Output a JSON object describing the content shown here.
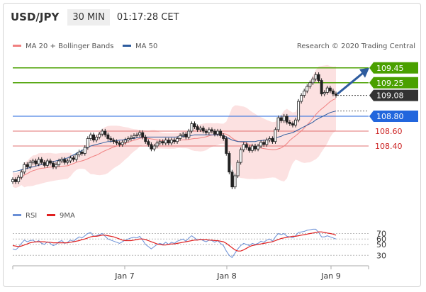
{
  "header": {
    "pair": "USD/JPY",
    "timeframe": "30 MIN",
    "time": "01:17:28 CET"
  },
  "legend": {
    "main": [
      {
        "label": "MA 20 + Bollinger Bands",
        "color": "#f08080"
      },
      {
        "label": "MA 50",
        "color": "#2e5c9e"
      }
    ],
    "rsi": [
      {
        "label": "RSI",
        "color": "#6a8fd6"
      },
      {
        "label": "9MA",
        "color": "#e02020"
      }
    ]
  },
  "credit": "Research © 2020 Trading Central",
  "colors": {
    "bullish": "#ffffff",
    "bearish": "#222222",
    "band_fill": "#fcdcdc",
    "green": "#4aa000",
    "blue": "#2266dd",
    "red": "#e07070"
  },
  "chart_data": [
    {
      "type": "candlestick",
      "x_labels": [
        "Jan 7",
        "Jan 8",
        "Jan 9"
      ],
      "ylim": [
        107.6,
        109.6
      ],
      "levels": [
        {
          "value": "109.45",
          "color": "#4aa000",
          "style": "line",
          "tag": "green"
        },
        {
          "value": "109.25",
          "color": "#4aa000",
          "style": "line",
          "tag": "green"
        },
        {
          "value": "109.08",
          "color": "#444444",
          "style": "dotted",
          "tag": "dark"
        },
        {
          "value": "108.80",
          "color": "#2266dd",
          "style": "line",
          "tag": "blue"
        },
        {
          "value": "108.60",
          "color": "#e07070",
          "style": "line",
          "tag": "text"
        },
        {
          "value": "108.40",
          "color": "#e07070",
          "style": "line",
          "tag": "text"
        }
      ],
      "close": [
        107.95,
        107.92,
        107.98,
        108.05,
        108.15,
        108.12,
        108.18,
        108.2,
        108.16,
        108.22,
        108.18,
        108.14,
        108.2,
        108.17,
        108.12,
        108.15,
        108.2,
        108.22,
        108.18,
        108.2,
        108.24,
        108.22,
        108.28,
        108.32,
        108.3,
        108.38,
        108.5,
        108.55,
        108.48,
        108.52,
        108.56,
        108.6,
        108.55,
        108.5,
        108.48,
        108.46,
        108.44,
        108.42,
        108.45,
        108.48,
        108.5,
        108.52,
        108.54,
        108.55,
        108.58,
        108.52,
        108.46,
        108.42,
        108.36,
        108.4,
        108.44,
        108.46,
        108.44,
        108.48,
        108.44,
        108.48,
        108.46,
        108.5,
        108.54,
        108.56,
        108.52,
        108.6,
        108.7,
        108.66,
        108.62,
        108.64,
        108.6,
        108.58,
        108.62,
        108.6,
        108.56,
        108.6,
        108.54,
        108.5,
        108.3,
        108.05,
        107.85,
        108.0,
        108.18,
        108.35,
        108.42,
        108.38,
        108.34,
        108.4,
        108.36,
        108.4,
        108.45,
        108.42,
        108.48,
        108.5,
        108.46,
        108.62,
        108.78,
        108.74,
        108.8,
        108.72,
        108.7,
        108.68,
        108.75,
        109.0,
        109.08,
        109.14,
        109.2,
        109.25,
        109.3,
        109.36,
        109.28,
        109.1,
        109.12,
        109.18,
        109.14,
        109.1,
        109.08
      ],
      "ma50": [
        108.05,
        108.06,
        108.07,
        108.08,
        108.09,
        108.1,
        108.11,
        108.12,
        108.13,
        108.14,
        108.15,
        108.16,
        108.17,
        108.18,
        108.19,
        108.2,
        108.21,
        108.22,
        108.23,
        108.24,
        108.26,
        108.28,
        108.3,
        108.32,
        108.34,
        108.36,
        108.38,
        108.4,
        108.41,
        108.42,
        108.43,
        108.44,
        108.45,
        108.46,
        108.46,
        108.47,
        108.47,
        108.48,
        108.48,
        108.49,
        108.49,
        108.5,
        108.5,
        108.51,
        108.51,
        108.52,
        108.52,
        108.52,
        108.52,
        108.52,
        108.52,
        108.52,
        108.52,
        108.52,
        108.52,
        108.52,
        108.52,
        108.52,
        108.53,
        108.53,
        108.53,
        108.54,
        108.54,
        108.55,
        108.55,
        108.55,
        108.55,
        108.55,
        108.55,
        108.55,
        108.55,
        108.55,
        108.55,
        108.54,
        108.52,
        108.5,
        108.48,
        108.47,
        108.46,
        108.46,
        108.46,
        108.46,
        108.46,
        108.46,
        108.46,
        108.47,
        108.47,
        108.48,
        108.48,
        108.49,
        108.5,
        108.51,
        108.52,
        108.53,
        108.55,
        108.56,
        108.57,
        108.58,
        108.6,
        108.62,
        108.64,
        108.66,
        108.68,
        108.7,
        108.72,
        108.75,
        108.77,
        108.79,
        108.81,
        108.83,
        108.85,
        108.86,
        108.87
      ],
      "rsi": [
        42,
        40,
        45,
        52,
        58,
        55,
        57,
        58,
        54,
        57,
        52,
        50,
        55,
        52,
        48,
        50,
        55,
        57,
        52,
        54,
        58,
        56,
        60,
        64,
        62,
        66,
        70,
        72,
        65,
        66,
        68,
        70,
        65,
        60,
        58,
        56,
        54,
        52,
        55,
        58,
        60,
        62,
        63,
        62,
        65,
        58,
        50,
        46,
        42,
        46,
        50,
        52,
        50,
        54,
        50,
        54,
        52,
        56,
        58,
        60,
        56,
        62,
        66,
        62,
        58,
        60,
        57,
        55,
        58,
        57,
        54,
        57,
        52,
        48,
        38,
        30,
        26,
        34,
        42,
        48,
        52,
        50,
        48,
        52,
        50,
        52,
        56,
        54,
        58,
        60,
        56,
        64,
        70,
        68,
        70,
        65,
        64,
        62,
        66,
        72,
        73,
        74,
        76,
        77,
        78,
        78,
        72,
        64,
        64,
        66,
        64,
        62,
        60
      ],
      "rsi_ma": [
        48,
        47,
        46,
        47,
        49,
        51,
        53,
        54,
        55,
        55,
        55,
        55,
        54,
        54,
        53,
        53,
        53,
        53,
        53,
        53,
        54,
        55,
        56,
        57,
        59,
        60,
        62,
        64,
        65,
        65,
        66,
        67,
        67,
        66,
        65,
        64,
        62,
        60,
        58,
        57,
        57,
        57,
        58,
        59,
        60,
        60,
        59,
        57,
        55,
        53,
        51,
        50,
        49,
        49,
        50,
        51,
        51,
        52,
        53,
        54,
        55,
        56,
        57,
        58,
        58,
        59,
        59,
        59,
        58,
        58,
        57,
        57,
        56,
        55,
        52,
        48,
        44,
        40,
        38,
        38,
        40,
        43,
        46,
        48,
        49,
        50,
        51,
        52,
        53,
        54,
        55,
        57,
        59,
        61,
        62,
        63,
        64,
        65,
        65,
        66,
        67,
        68,
        69,
        70,
        71,
        72,
        73,
        73,
        72,
        71,
        70,
        69,
        67
      ]
    }
  ]
}
